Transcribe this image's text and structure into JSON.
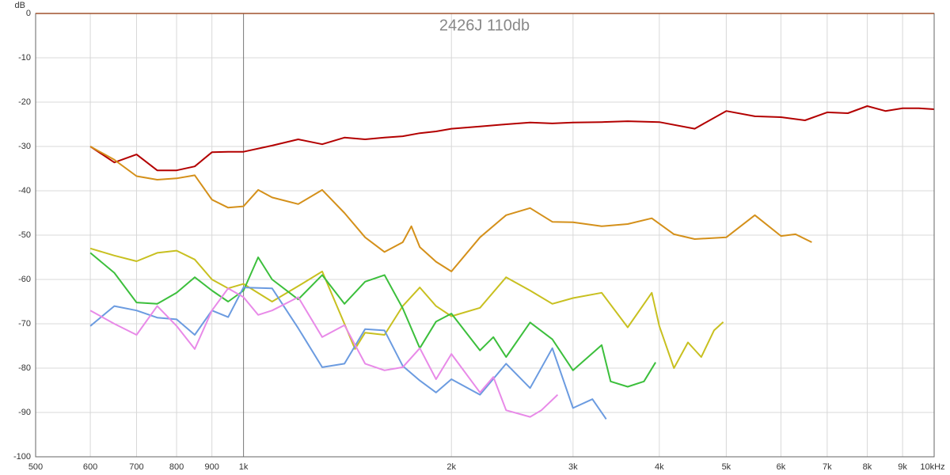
{
  "chart_data": {
    "type": "line",
    "title": "2426J 110db",
    "y_label": "dB",
    "log_x": true,
    "grid": true,
    "xlim": [
      500,
      10000
    ],
    "ylim": [
      -100,
      0
    ],
    "xticks": [
      500,
      600,
      700,
      800,
      900,
      {
        "value": 1000,
        "label": "1k"
      },
      {
        "value": 2000,
        "label": "2k"
      },
      {
        "value": 3000,
        "label": "3k"
      },
      {
        "value": 4000,
        "label": "4k"
      },
      {
        "value": 5000,
        "label": "5k"
      },
      {
        "value": 6000,
        "label": "6k"
      },
      {
        "value": 7000,
        "label": "7k"
      },
      {
        "value": 8000,
        "label": "8k"
      },
      {
        "value": 9000,
        "label": "9k"
      },
      {
        "value": 10000,
        "label": "10kHz"
      }
    ],
    "yticks": [
      0,
      -10,
      -20,
      -30,
      -40,
      -50,
      -60,
      -70,
      -80,
      -90,
      -100
    ],
    "series": [
      {
        "color": "#b30000",
        "x": [
          600,
          650,
          700,
          750,
          800,
          850,
          900,
          950,
          1000,
          1100,
          1200,
          1300,
          1400,
          1500,
          1600,
          1700,
          1800,
          1900,
          2000,
          2200,
          2400,
          2600,
          2800,
          3000,
          3300,
          3600,
          4000,
          4500,
          5000,
          5500,
          6000,
          6500,
          7000,
          7500,
          8000,
          8500,
          9000,
          9500,
          10000
        ],
        "values": [
          -30,
          -33.6,
          -31.8,
          -35.4,
          -35.4,
          -34.5,
          -31.3,
          -31.2,
          -31.2,
          -29.8,
          -28.4,
          -29.5,
          -28,
          -28.4,
          -28,
          -27.7,
          -27,
          -26.6,
          -26,
          -25.5,
          -25,
          -24.6,
          -24.8,
          -24.6,
          -24.5,
          -24.3,
          -24.5,
          -26,
          -22,
          -23.2,
          -23.4,
          -24.1,
          -22.3,
          -22.5,
          -20.9,
          -22,
          -21.4,
          -21.4,
          -21.6
        ]
      },
      {
        "color": "#d4901a",
        "x": [
          600,
          650,
          700,
          750,
          800,
          850,
          900,
          950,
          1000,
          1050,
          1100,
          1200,
          1300,
          1400,
          1500,
          1600,
          1700,
          1750,
          1800,
          1900,
          2000,
          2200,
          2400,
          2600,
          2800,
          3000,
          3300,
          3600,
          3900,
          4200,
          4500,
          5000,
          5500,
          6000,
          6300,
          6650
        ],
        "values": [
          -30,
          -33,
          -36.7,
          -37.5,
          -37.2,
          -36.5,
          -42,
          -43.8,
          -43.5,
          -39.8,
          -41.5,
          -43,
          -39.8,
          -45,
          -50.5,
          -53.8,
          -51.6,
          -48,
          -52.7,
          -56,
          -58.2,
          -50.5,
          -45.5,
          -43.9,
          -47,
          -47.1,
          -48,
          -47.5,
          -46.2,
          -49.8,
          -50.9,
          -50.5,
          -45.5,
          -50.2,
          -49.8,
          -51.6
        ]
      },
      {
        "color": "#c8c020",
        "x": [
          600,
          650,
          700,
          750,
          800,
          850,
          900,
          950,
          1000,
          1100,
          1200,
          1300,
          1400,
          1450,
          1500,
          1600,
          1700,
          1800,
          1900,
          2000,
          2200,
          2400,
          2600,
          2800,
          3000,
          3300,
          3600,
          3900,
          4000,
          4200,
          4400,
          4600,
          4800,
          4950
        ],
        "values": [
          -53,
          -54.6,
          -55.9,
          -54,
          -53.5,
          -55.5,
          -60,
          -62,
          -61,
          -65,
          -61.5,
          -58.2,
          -70,
          -75.7,
          -72,
          -72.5,
          -66,
          -61.8,
          -66,
          -68.3,
          -66.4,
          -59.5,
          -62.5,
          -65.5,
          -64.2,
          -63,
          -70.8,
          -63,
          -70.5,
          -80,
          -74.2,
          -77.5,
          -71.5,
          -69.6
        ]
      },
      {
        "color": "#3cbf3c",
        "x": [
          600,
          650,
          700,
          750,
          800,
          850,
          900,
          950,
          1000,
          1050,
          1100,
          1200,
          1300,
          1400,
          1500,
          1600,
          1700,
          1800,
          1900,
          2000,
          2200,
          2300,
          2400,
          2600,
          2800,
          3000,
          3300,
          3400,
          3600,
          3800,
          3950
        ],
        "values": [
          -54,
          -58.5,
          -65.2,
          -65.5,
          -63,
          -59.5,
          -62.5,
          -65,
          -62.5,
          -55,
          -60,
          -64.5,
          -59,
          -65.5,
          -60.5,
          -59,
          -66.5,
          -75.5,
          -69.5,
          -67.7,
          -76,
          -73,
          -77.5,
          -69.7,
          -73.5,
          -80.5,
          -74.8,
          -83,
          -84.2,
          -83,
          -78.7
        ]
      },
      {
        "color": "#6b9be0",
        "x": [
          600,
          650,
          700,
          750,
          800,
          850,
          900,
          950,
          1000,
          1100,
          1200,
          1300,
          1400,
          1500,
          1600,
          1700,
          1800,
          1900,
          2000,
          2200,
          2400,
          2600,
          2800,
          3000,
          3200,
          3350
        ],
        "values": [
          -70.5,
          -66,
          -67,
          -68.6,
          -69,
          -72.5,
          -67,
          -68.5,
          -61.8,
          -62,
          -71,
          -79.8,
          -79,
          -71.2,
          -71.5,
          -79.5,
          -82.8,
          -85.5,
          -82.5,
          -86,
          -79,
          -84.5,
          -75.5,
          -89,
          -87,
          -91.5
        ]
      },
      {
        "color": "#e88ae8",
        "x": [
          600,
          650,
          700,
          750,
          800,
          850,
          900,
          950,
          1000,
          1050,
          1100,
          1200,
          1300,
          1400,
          1500,
          1600,
          1700,
          1800,
          1900,
          2000,
          2200,
          2300,
          2400,
          2600,
          2700,
          2850
        ],
        "values": [
          -67,
          -70,
          -72.5,
          -66,
          -70.5,
          -75.7,
          -67,
          -62,
          -64,
          -68,
          -67,
          -64,
          -73,
          -70.3,
          -79,
          -80.5,
          -79.8,
          -75.5,
          -82.5,
          -76.8,
          -85.5,
          -82,
          -89.5,
          -91,
          -89.5,
          -86
        ]
      }
    ]
  }
}
